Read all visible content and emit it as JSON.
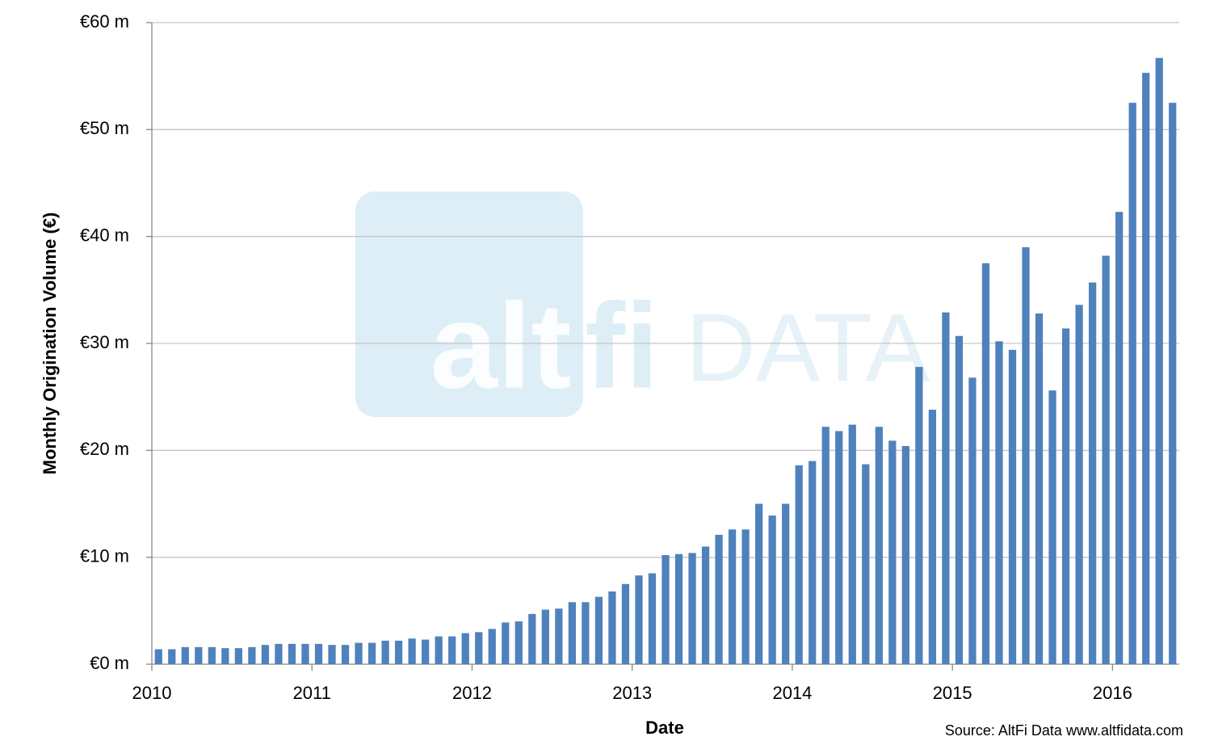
{
  "chart_data": {
    "type": "bar",
    "x_label": "Date",
    "y_label": "Monthly Origination Volume (€)",
    "source": "Source: AltFi Data www.altfidata.com",
    "watermark": [
      "alt",
      "fi",
      "DATA"
    ],
    "categories": [
      "2010",
      null,
      null,
      null,
      null,
      null,
      null,
      null,
      null,
      null,
      null,
      null,
      "2011",
      null,
      null,
      null,
      null,
      null,
      null,
      null,
      null,
      null,
      null,
      null,
      "2012",
      null,
      null,
      null,
      null,
      null,
      null,
      null,
      null,
      null,
      null,
      null,
      "2013",
      null,
      null,
      null,
      null,
      null,
      null,
      null,
      null,
      null,
      null,
      null,
      "2014",
      null,
      null,
      null,
      null,
      null,
      null,
      null,
      null,
      null,
      null,
      null,
      "2015",
      null,
      null,
      null,
      null,
      null,
      null,
      null,
      null,
      null,
      null,
      null,
      "2016",
      null,
      null,
      null,
      null
    ],
    "values": [
      1.4,
      1.4,
      1.6,
      1.6,
      1.6,
      1.5,
      1.5,
      1.6,
      1.8,
      1.9,
      1.9,
      1.9,
      1.9,
      1.8,
      1.8,
      2.0,
      2.0,
      2.2,
      2.2,
      2.4,
      2.3,
      2.6,
      2.6,
      2.9,
      3.0,
      3.3,
      3.9,
      4.0,
      4.7,
      5.1,
      5.2,
      5.8,
      5.8,
      6.3,
      6.8,
      7.5,
      8.3,
      8.5,
      10.2,
      10.3,
      10.4,
      11.0,
      12.1,
      12.6,
      12.6,
      15.0,
      13.9,
      15.0,
      18.6,
      19.0,
      22.2,
      21.8,
      22.4,
      18.7,
      22.2,
      20.9,
      20.4,
      27.8,
      23.8,
      32.9,
      30.7,
      26.8,
      37.5,
      30.2,
      29.4,
      39.0,
      32.8,
      25.6,
      31.4,
      33.6,
      35.7,
      38.2,
      42.3,
      52.5,
      55.3,
      56.7,
      52.5
    ],
    "color": "#4f81bd",
    "ylim": [
      0,
      60
    ],
    "yticks": [
      {
        "value": 0,
        "label": "€0 m"
      },
      {
        "value": 10,
        "label": "€10 m"
      },
      {
        "value": 20,
        "label": "€20 m"
      },
      {
        "value": 30,
        "label": "€30 m"
      },
      {
        "value": 40,
        "label": "€40 m"
      },
      {
        "value": 50,
        "label": "€50 m"
      },
      {
        "value": 60,
        "label": "€60 m"
      }
    ],
    "grid": true
  }
}
